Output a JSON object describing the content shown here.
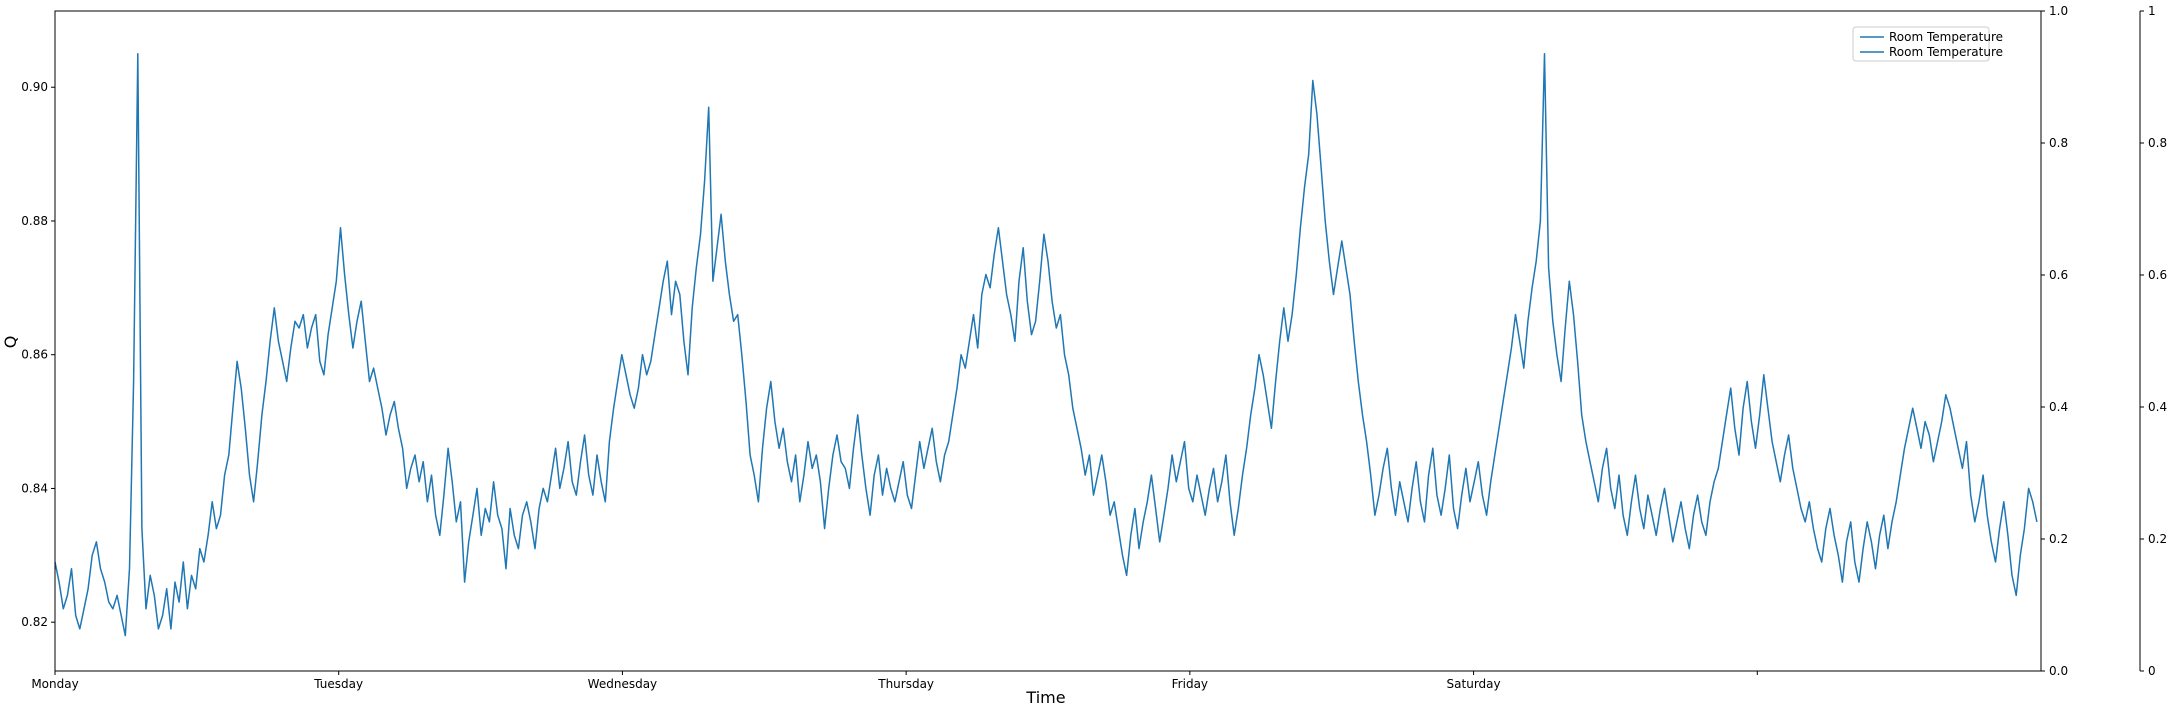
{
  "chart_data": {
    "type": "line",
    "title": "",
    "xlabel": "Time",
    "ylabel": "Q",
    "x_ticks": [
      "Monday",
      "Tuesday",
      "Wednesday",
      "Thursday",
      "Friday",
      "Saturday",
      ""
    ],
    "x_range": [
      0,
      7
    ],
    "ylim": [
      0.8127,
      0.9114
    ],
    "y_ticks": [
      0.82,
      0.84,
      0.86,
      0.88,
      0.9
    ],
    "y_tick_labels": [
      "0.82",
      "0.84",
      "0.86",
      "0.88",
      "0.90"
    ],
    "right_axis_1": {
      "ylim": [
        0,
        1
      ],
      "ticks": [
        "0.0",
        "0.2",
        "0.4",
        "0.6",
        "0.8",
        "1.0"
      ]
    },
    "right_axis_2": {
      "ylim": [
        0,
        1
      ],
      "ticks": [
        "0",
        "0.2",
        "0.4",
        "0.6",
        "0.8",
        "1"
      ]
    },
    "grid": false,
    "legend_position": "upper-right",
    "legend": [
      "Room Temperature",
      "Room Temperature"
    ],
    "series": [
      {
        "name": "Room Temperature",
        "color": "#1f77b4",
        "sampling": "hourly",
        "values": [
          0.829,
          0.826,
          0.822,
          0.824,
          0.828,
          0.821,
          0.819,
          0.822,
          0.825,
          0.83,
          0.832,
          0.828,
          0.826,
          0.823,
          0.822,
          0.824,
          0.821,
          0.818,
          0.828,
          0.856,
          0.905,
          0.834,
          0.822,
          0.827,
          0.824,
          0.819,
          0.821,
          0.825,
          0.819,
          0.826,
          0.823,
          0.829,
          0.822,
          0.827,
          0.825,
          0.831,
          0.829,
          0.833,
          0.838,
          0.834,
          0.836,
          0.842,
          0.845,
          0.852,
          0.859,
          0.855,
          0.849,
          0.842,
          0.838,
          0.844,
          0.851,
          0.856,
          0.862,
          0.867,
          0.862,
          0.859,
          0.856,
          0.861,
          0.865,
          0.864,
          0.866,
          0.861,
          0.864,
          0.866,
          0.859,
          0.857,
          0.863,
          0.867,
          0.871,
          0.879,
          0.872,
          0.866,
          0.861,
          0.865,
          0.868,
          0.862,
          0.856,
          0.858,
          0.855,
          0.852,
          0.848,
          0.851,
          0.853,
          0.849,
          0.846,
          0.84,
          0.843,
          0.845,
          0.841,
          0.844,
          0.838,
          0.842,
          0.836,
          0.833,
          0.839,
          0.846,
          0.841,
          0.835,
          0.838,
          0.826,
          0.832,
          0.836,
          0.84,
          0.833,
          0.837,
          0.835,
          0.841,
          0.836,
          0.834,
          0.828,
          0.837,
          0.833,
          0.831,
          0.836,
          0.838,
          0.835,
          0.831,
          0.837,
          0.84,
          0.838,
          0.842,
          0.846,
          0.84,
          0.843,
          0.847,
          0.841,
          0.839,
          0.844,
          0.848,
          0.842,
          0.839,
          0.845,
          0.841,
          0.838,
          0.847,
          0.852,
          0.856,
          0.86,
          0.857,
          0.854,
          0.852,
          0.855,
          0.86,
          0.857,
          0.859,
          0.863,
          0.867,
          0.871,
          0.874,
          0.866,
          0.871,
          0.869,
          0.862,
          0.857,
          0.867,
          0.873,
          0.878,
          0.886,
          0.897,
          0.871,
          0.876,
          0.881,
          0.874,
          0.869,
          0.865,
          0.866,
          0.86,
          0.853,
          0.845,
          0.842,
          0.838,
          0.846,
          0.852,
          0.856,
          0.85,
          0.846,
          0.849,
          0.844,
          0.841,
          0.845,
          0.838,
          0.842,
          0.847,
          0.843,
          0.845,
          0.841,
          0.834,
          0.84,
          0.845,
          0.848,
          0.844,
          0.843,
          0.84,
          0.846,
          0.851,
          0.845,
          0.84,
          0.836,
          0.842,
          0.845,
          0.839,
          0.843,
          0.84,
          0.838,
          0.841,
          0.844,
          0.839,
          0.837,
          0.842,
          0.847,
          0.843,
          0.846,
          0.849,
          0.844,
          0.841,
          0.845,
          0.847,
          0.851,
          0.855,
          0.86,
          0.858,
          0.862,
          0.866,
          0.861,
          0.869,
          0.872,
          0.87,
          0.875,
          0.879,
          0.874,
          0.869,
          0.866,
          0.862,
          0.871,
          0.876,
          0.868,
          0.863,
          0.865,
          0.871,
          0.878,
          0.874,
          0.868,
          0.864,
          0.866,
          0.86,
          0.857,
          0.852,
          0.849,
          0.846,
          0.842,
          0.845,
          0.839,
          0.842,
          0.845,
          0.841,
          0.836,
          0.838,
          0.834,
          0.83,
          0.827,
          0.833,
          0.837,
          0.831,
          0.835,
          0.838,
          0.842,
          0.837,
          0.832,
          0.836,
          0.84,
          0.845,
          0.841,
          0.844,
          0.847,
          0.84,
          0.838,
          0.842,
          0.839,
          0.836,
          0.84,
          0.843,
          0.838,
          0.841,
          0.845,
          0.838,
          0.833,
          0.837,
          0.842,
          0.846,
          0.851,
          0.855,
          0.86,
          0.857,
          0.853,
          0.849,
          0.856,
          0.862,
          0.867,
          0.862,
          0.866,
          0.872,
          0.879,
          0.885,
          0.89,
          0.901,
          0.896,
          0.888,
          0.88,
          0.874,
          0.869,
          0.873,
          0.877,
          0.873,
          0.869,
          0.862,
          0.856,
          0.851,
          0.847,
          0.842,
          0.836,
          0.839,
          0.843,
          0.846,
          0.84,
          0.836,
          0.841,
          0.838,
          0.835,
          0.84,
          0.844,
          0.838,
          0.835,
          0.842,
          0.846,
          0.839,
          0.836,
          0.84,
          0.845,
          0.837,
          0.834,
          0.839,
          0.843,
          0.838,
          0.841,
          0.844,
          0.839,
          0.836,
          0.841,
          0.845,
          0.849,
          0.853,
          0.857,
          0.861,
          0.866,
          0.862,
          0.858,
          0.865,
          0.87,
          0.874,
          0.88,
          0.905,
          0.873,
          0.865,
          0.86,
          0.856,
          0.864,
          0.871,
          0.866,
          0.859,
          0.851,
          0.847,
          0.844,
          0.841,
          0.838,
          0.843,
          0.846,
          0.84,
          0.837,
          0.842,
          0.836,
          0.833,
          0.838,
          0.842,
          0.837,
          0.834,
          0.839,
          0.836,
          0.833,
          0.837,
          0.84,
          0.836,
          0.832,
          0.835,
          0.838,
          0.834,
          0.831,
          0.836,
          0.839,
          0.835,
          0.833,
          0.838,
          0.841,
          0.843,
          0.847,
          0.851,
          0.855,
          0.849,
          0.845,
          0.852,
          0.856,
          0.85,
          0.846,
          0.851,
          0.857,
          0.852,
          0.847,
          0.844,
          0.841,
          0.845,
          0.848,
          0.843,
          0.84,
          0.837,
          0.835,
          0.838,
          0.834,
          0.831,
          0.829,
          0.834,
          0.837,
          0.833,
          0.83,
          0.826,
          0.832,
          0.835,
          0.829,
          0.826,
          0.831,
          0.835,
          0.832,
          0.828,
          0.833,
          0.836,
          0.831,
          0.835,
          0.838,
          0.842,
          0.846,
          0.849,
          0.852,
          0.849,
          0.846,
          0.85,
          0.848,
          0.844,
          0.847,
          0.85,
          0.854,
          0.852,
          0.849,
          0.846,
          0.843,
          0.847,
          0.839,
          0.835,
          0.838,
          0.842,
          0.836,
          0.832,
          0.829,
          0.834,
          0.838,
          0.833,
          0.827,
          0.824,
          0.83,
          0.834,
          0.84,
          0.838,
          0.835
        ]
      }
    ]
  }
}
